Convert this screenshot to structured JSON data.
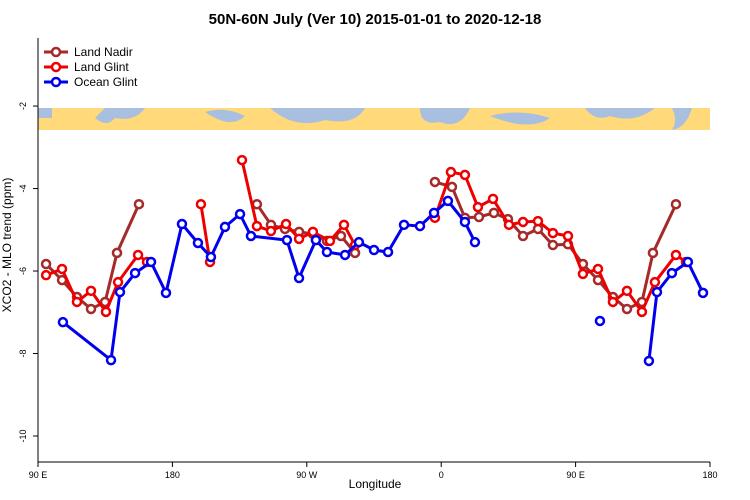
{
  "chart_data": {
    "type": "line",
    "title": "50N-60N July (Ver 10)   2015-01-01 to 2020-12-18",
    "x_label": "Longitude",
    "y_label": "XCO2 - MLO trend (ppm)",
    "legend": "upper left",
    "xlim": [
      90,
      540
    ],
    "ylim": [
      -10.63,
      -0.35
    ],
    "xticks": [
      {
        "value": 90,
        "label": "90 E"
      },
      {
        "value": 180,
        "label": "180"
      },
      {
        "value": 270,
        "label": "90 W"
      },
      {
        "value": 360,
        "label": "0"
      },
      {
        "value": 450,
        "label": "90 E"
      },
      {
        "value": 540,
        "label": "180"
      }
    ],
    "yticks": [
      -2,
      -4,
      -6,
      -8,
      -10
    ],
    "series": [
      {
        "name": "Land Nadir",
        "color": "#a52a2a",
        "x": [
          95.4,
          106.1,
          116.1,
          125.5,
          134.9,
          142.9,
          157.6,
          null,
          236.6,
          246.0,
          255.4,
          264.8,
          274.1,
          283.5,
          292.9,
          302.3,
          null,
          355.8,
          367.2,
          375.9,
          385.3,
          395.3,
          404.7,
          414.8,
          424.8,
          434.8,
          444.9,
          454.9,
          465.0,
          475.0,
          484.4,
          494.4,
          501.8,
          517.2
        ],
        "values": [
          -5.83,
          -6.22,
          -6.63,
          -6.92,
          -6.75,
          -5.56,
          -4.38,
          null,
          -4.38,
          -4.88,
          -4.98,
          -5.05,
          -5.1,
          -5.27,
          -5.15,
          -5.56,
          null,
          -3.84,
          -3.96,
          -4.71,
          -4.69,
          -4.59,
          -4.74,
          -5.15,
          -4.98,
          -5.37,
          -5.35,
          -5.83,
          -6.22,
          -6.63,
          -6.92,
          -6.75,
          -5.56,
          -4.38
        ]
      },
      {
        "name": "Land Glint",
        "color": "#ee0000",
        "x": [
          95.4,
          106.1,
          116.1,
          125.5,
          135.5,
          143.6,
          157.0,
          163.0,
          null,
          199.1,
          205.2,
          null,
          226.6,
          236.6,
          246.0,
          256.1,
          264.8,
          274.1,
          285.5,
          294.9,
          302.3,
          null,
          355.8,
          366.5,
          375.9,
          384.6,
          394.7,
          405.4,
          414.8,
          424.8,
          434.8,
          444.9,
          454.9,
          465.0,
          475.0,
          484.4,
          494.4,
          503.1,
          517.2,
          523.9
        ],
        "values": [
          -6.1,
          -5.95,
          -6.75,
          -6.48,
          -6.99,
          -6.27,
          -5.61,
          -5.78,
          null,
          -4.38,
          -5.78,
          null,
          -3.31,
          -4.91,
          -5.03,
          -4.86,
          -5.22,
          -5.05,
          -5.27,
          -4.88,
          -5.37,
          null,
          -4.71,
          -3.6,
          -3.67,
          -4.45,
          -4.25,
          -4.88,
          -4.81,
          -4.79,
          -5.08,
          -5.15,
          -6.07,
          -5.95,
          -6.75,
          -6.48,
          -6.99,
          -6.27,
          -5.61,
          -5.78
        ]
      },
      {
        "name": "Ocean Glint",
        "color": "#0000ee",
        "x": [
          106.7,
          138.9,
          144.9,
          155.0,
          165.7,
          175.7,
          186.4,
          197.1,
          205.8,
          215.2,
          225.3,
          232.6,
          256.7,
          264.8,
          276.1,
          283.5,
          295.6,
          304.9,
          315.0,
          324.4,
          335.1,
          345.8,
          355.2,
          364.5,
          375.9,
          382.6,
          null,
          466.3,
          null,
          499.1,
          504.5,
          514.5,
          525.2,
          535.3
        ],
        "values": [
          -7.24,
          -8.16,
          -6.51,
          -6.05,
          -5.78,
          -6.53,
          -4.86,
          -5.32,
          -5.66,
          -4.93,
          -4.62,
          -5.15,
          -5.25,
          -6.17,
          -5.25,
          -5.54,
          -5.61,
          -5.3,
          -5.49,
          -5.54,
          -4.88,
          -4.91,
          -4.59,
          -4.3,
          -4.81,
          -5.3,
          null,
          -7.21,
          null,
          -8.18,
          -6.51,
          -6.05,
          -5.78,
          -6.53
        ]
      }
    ]
  }
}
